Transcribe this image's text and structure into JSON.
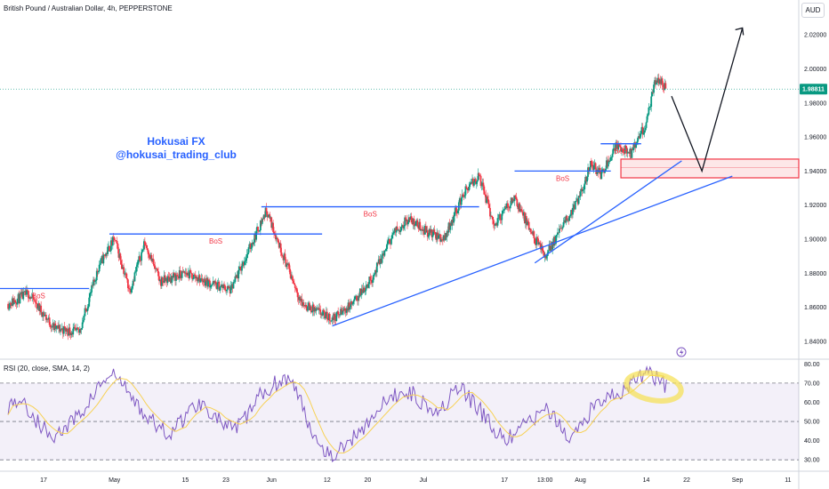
{
  "chart_data": [
    {
      "type": "candlestick",
      "title": "British Pound / Australian Dollar, 4h, PEPPERSTONE",
      "currency": "AUD",
      "watermark": [
        "Hokusai FX",
        "@hokusai_trading_club"
      ],
      "yticks": [
        "2.02000",
        "2.00000",
        "1.98000",
        "1.96000",
        "1.94000",
        "1.92000",
        "1.90000",
        "1.88000",
        "1.86000",
        "1.84000"
      ],
      "ylim": [
        1.83,
        2.03
      ],
      "xticks": [
        "17",
        "May",
        "15",
        "23",
        "Jun",
        "12",
        "20",
        "Jul",
        "17",
        "13:00",
        "Aug",
        "14",
        "22",
        "Sep",
        "11"
      ],
      "last_price": "1.98811",
      "price_path": [
        [
          "Apr 10",
          1.862
        ],
        [
          "Apr 14",
          1.868
        ],
        [
          "Apr 19",
          1.848
        ],
        [
          "Apr 24",
          1.845
        ],
        [
          "Apr 28",
          1.885
        ],
        [
          "May 1",
          1.9
        ],
        [
          "May 4",
          1.87
        ],
        [
          "May 7",
          1.898
        ],
        [
          "May 10",
          1.875
        ],
        [
          "May 15",
          1.88
        ],
        [
          "May 20",
          1.874
        ],
        [
          "May 24",
          1.87
        ],
        [
          "May 27",
          1.89
        ],
        [
          "May 31",
          1.917
        ],
        [
          "Jun 3",
          1.893
        ],
        [
          "Jun 7",
          1.862
        ],
        [
          "Jun 13",
          1.853
        ],
        [
          "Jun 17",
          1.862
        ],
        [
          "Jun 21",
          1.878
        ],
        [
          "Jun 25",
          1.903
        ],
        [
          "Jun 28",
          1.912
        ],
        [
          "Jul 2",
          1.904
        ],
        [
          "Jul 5",
          1.9
        ],
        [
          "Jul 9",
          1.927
        ],
        [
          "Jul 12",
          1.937
        ],
        [
          "Jul 15",
          1.908
        ],
        [
          "Jul 19",
          1.925
        ],
        [
          "Jul 22",
          1.905
        ],
        [
          "Jul 25",
          1.89
        ],
        [
          "Jul 28",
          1.905
        ],
        [
          "Aug 1",
          1.925
        ],
        [
          "Aug 3",
          1.945
        ],
        [
          "Aug 5",
          1.938
        ],
        [
          "Aug 8",
          1.955
        ],
        [
          "Aug 11",
          1.95
        ],
        [
          "Aug 14",
          1.968
        ],
        [
          "Aug 16",
          1.995
        ],
        [
          "Aug 18",
          1.988
        ]
      ],
      "bos_levels": [
        {
          "label": "BoS",
          "price": 1.871
        },
        {
          "label": "BoS",
          "price": 1.903
        },
        {
          "label": "BoS",
          "price": 1.919
        },
        {
          "label": "BoS",
          "price": 1.94
        },
        {
          "label": "BoS",
          "price": 1.956
        }
      ],
      "demand_zone": [
        1.936,
        1.947
      ]
    },
    {
      "type": "line",
      "title": "RSI (20, close, SMA, 14, 2)",
      "yticks": [
        "80.00",
        "70.00",
        "60.00",
        "50.00",
        "40.00",
        "30.00"
      ],
      "ylim": [
        25,
        82
      ],
      "levels": [
        70,
        50,
        30
      ],
      "series": [
        {
          "values": [
            58,
            62,
            55,
            48,
            42,
            45,
            50,
            56,
            65,
            72,
            74,
            66,
            58,
            52,
            46,
            44,
            50,
            57,
            60,
            54,
            48,
            45,
            52,
            61,
            67,
            71,
            73,
            62,
            47,
            38,
            32,
            36,
            42,
            48,
            54,
            60,
            64,
            66,
            62,
            58,
            56,
            63,
            67,
            60,
            54,
            46,
            40,
            43,
            49,
            53,
            56,
            48,
            40,
            48,
            56,
            62,
            64,
            66,
            70,
            76,
            73,
            68
          ]
        }
      ]
    }
  ]
}
